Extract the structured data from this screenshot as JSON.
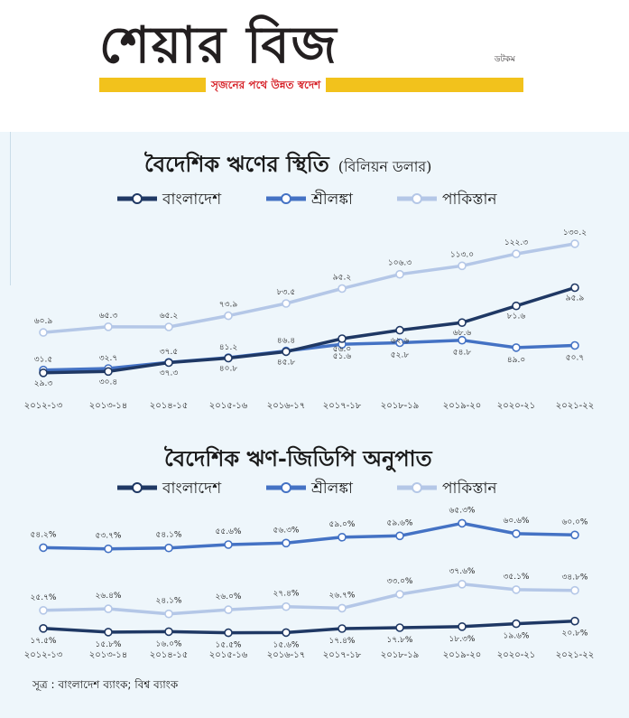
{
  "masthead": {
    "logo": "শেয়ার বিজ",
    "logo_small": "ডটকম",
    "tagline": "সৃজনের পথে উন্নত স্বদেশ",
    "colors": {
      "bar": "#f2c21c",
      "tagline": "#d62027"
    }
  },
  "legend": [
    "বাংলাদেশ",
    "শ্রীলঙ্কা",
    "পাকিস্তান"
  ],
  "series_colors": [
    "#1f3864",
    "#4472c4",
    "#b4c7e7"
  ],
  "source": "সূত্র : বাংলাদেশ ব্যাংক; বিশ্ব ব্যাংক",
  "chart_data": [
    {
      "type": "line",
      "title": "বৈদেশিক ঋণের স্থিতি",
      "unit": "(বিলিয়ন ডলার)",
      "categories": [
        "২০১২-১৩",
        "২০১৩-১৪",
        "২০১৪-১৫",
        "২০১৫-১৬",
        "২০১৬-১৭",
        "২০১৭-১৮",
        "২০১৮-১৯",
        "২০১৯-২০",
        "২০২০-২১",
        "২০২১-২২"
      ],
      "ylim": [
        20,
        140
      ],
      "legend_position": "top",
      "series": [
        {
          "name": "বাংলাদেশ",
          "values": [
            29.3,
            30.4,
            37.3,
            40.8,
            45.8,
            56.0,
            62.6,
            68.6,
            81.6,
            95.9
          ],
          "labels": [
            "২৯.৩",
            "৩০.৪",
            "৩৭.৩",
            "৪০.৮",
            "৪৫.৮",
            "৫৬.০",
            "৬২.৬",
            "৬৮.৬",
            "৮১.৬",
            "৯৫.৯"
          ]
        },
        {
          "name": "শ্রীলঙ্কা",
          "values": [
            31.5,
            32.7,
            37.5,
            41.2,
            46.4,
            51.6,
            52.8,
            54.8,
            49.0,
            50.7
          ],
          "labels": [
            "৩১.৫",
            "৩২.৭",
            "৩৭.৫",
            "৪১.২",
            "৪৬.৪",
            "৫১.৬",
            "৫২.৮",
            "৫৪.৮",
            "৪৯.০",
            "৫০.৭"
          ]
        },
        {
          "name": "পাকিস্তান",
          "values": [
            60.9,
            65.3,
            65.2,
            73.9,
            83.5,
            95.2,
            106.3,
            113.0,
            122.3,
            130.2
          ],
          "labels": [
            "৬০.৯",
            "৬৫.৩",
            "৬৫.২",
            "৭৩.৯",
            "৮৩.৫",
            "৯৫.২",
            "১০৬.৩",
            "১১৩.০",
            "১২২.৩",
            "১৩০.২"
          ]
        }
      ]
    },
    {
      "type": "line",
      "title": "বৈদেশিক ঋণ-জিডিপি অনুপাত",
      "unit": "",
      "categories": [
        "২০১২-১৩",
        "২০১৩-১৪",
        "২০১৪-১৫",
        "২০১৫-১৬",
        "২০১৬-১৭",
        "২০১৭-১৮",
        "২০১৮-১৯",
        "২০১৯-২০",
        "২০২০-২১",
        "২০২১-২২"
      ],
      "ylim": [
        10,
        70
      ],
      "legend_position": "top",
      "series": [
        {
          "name": "বাংলাদেশ",
          "values": [
            17.5,
            15.8,
            16.0,
            15.5,
            15.6,
            17.4,
            17.8,
            18.3,
            19.6,
            20.8
          ],
          "labels": [
            "১৭.৫%",
            "১৫.৮%",
            "১৬.০%",
            "১৫.৫%",
            "১৫.৬%",
            "১৭.৪%",
            "১৭.৮%",
            "১৮.৩%",
            "১৯.৬%",
            "২০.৮%"
          ]
        },
        {
          "name": "শ্রীলঙ্কা",
          "values": [
            54.2,
            53.7,
            54.1,
            55.6,
            56.3,
            59.0,
            59.6,
            65.3,
            60.6,
            60.0
          ],
          "labels": [
            "৫৪.২%",
            "৫৩.৭%",
            "৫৪.১%",
            "৫৫.৬%",
            "৫৬.৩%",
            "৫৯.০%",
            "৫৯.৬%",
            "৬৫.৩%",
            "৬০.৬%",
            "৬০.০%"
          ]
        },
        {
          "name": "পাকিস্তান",
          "values": [
            25.7,
            26.4,
            24.1,
            26.0,
            27.4,
            26.7,
            33.0,
            37.6,
            35.1,
            34.8
          ],
          "labels": [
            "২৫.৭%",
            "২৬.৪%",
            "২৪.১%",
            "২৬.০%",
            "২৭.৪%",
            "২৬.৭%",
            "৩৩.০%",
            "৩৭.৬%",
            "৩৫.১%",
            "৩৪.৮%"
          ]
        }
      ]
    }
  ]
}
